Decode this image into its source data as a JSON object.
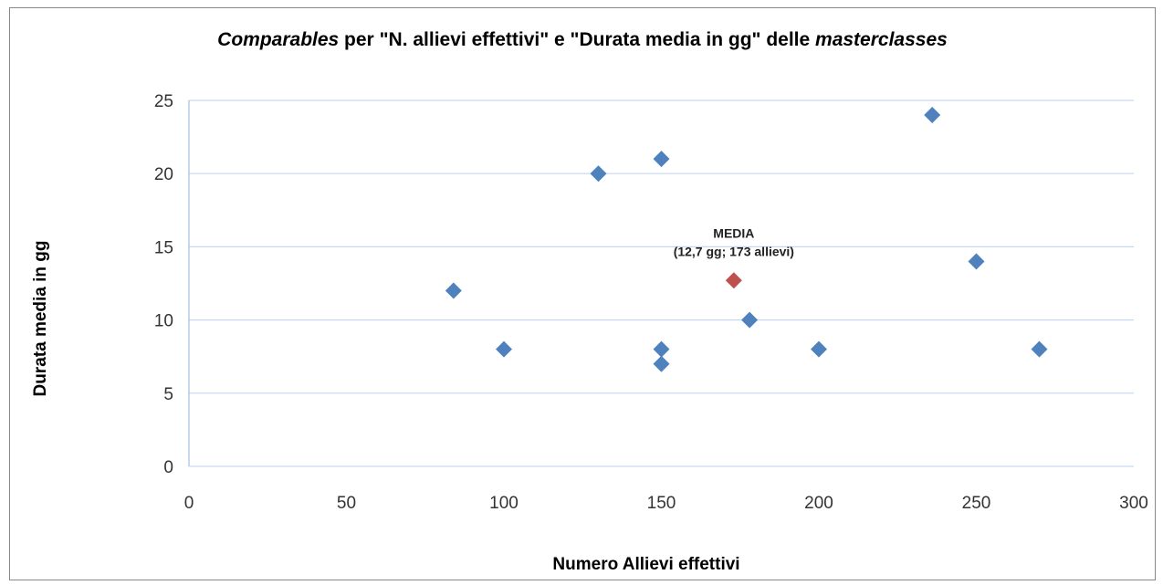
{
  "chart_data": {
    "type": "scatter",
    "title_parts": [
      {
        "text": "Comparables",
        "italic": true
      },
      {
        "text": " per \"N. allievi effettivi\" e \"Durata media in gg\" delle ",
        "italic": false
      },
      {
        "text": "masterclasses",
        "italic": true
      }
    ],
    "xlabel": "Numero Allievi effettivi",
    "ylabel": "Durata media in gg",
    "xlim": [
      0,
      300
    ],
    "ylim": [
      0,
      25
    ],
    "xticks": [
      0,
      50,
      100,
      150,
      200,
      250,
      300
    ],
    "yticks": [
      0,
      5,
      10,
      15,
      20,
      25
    ],
    "grid": "horizontal",
    "series": [
      {
        "color": "#4f81bd",
        "marker": "diamond",
        "points": [
          {
            "x": 84,
            "y": 12
          },
          {
            "x": 100,
            "y": 8
          },
          {
            "x": 130,
            "y": 20
          },
          {
            "x": 150,
            "y": 21
          },
          {
            "x": 150,
            "y": 8
          },
          {
            "x": 150,
            "y": 7
          },
          {
            "x": 178,
            "y": 10
          },
          {
            "x": 200,
            "y": 8
          },
          {
            "x": 236,
            "y": 24
          },
          {
            "x": 250,
            "y": 14
          },
          {
            "x": 270,
            "y": 8
          }
        ]
      },
      {
        "color": "#c0504d",
        "marker": "diamond",
        "points": [
          {
            "x": 173,
            "y": 12.7
          }
        ],
        "label_lines": [
          "MEDIA",
          "(12,7 gg; 173 allievi)"
        ]
      }
    ]
  }
}
